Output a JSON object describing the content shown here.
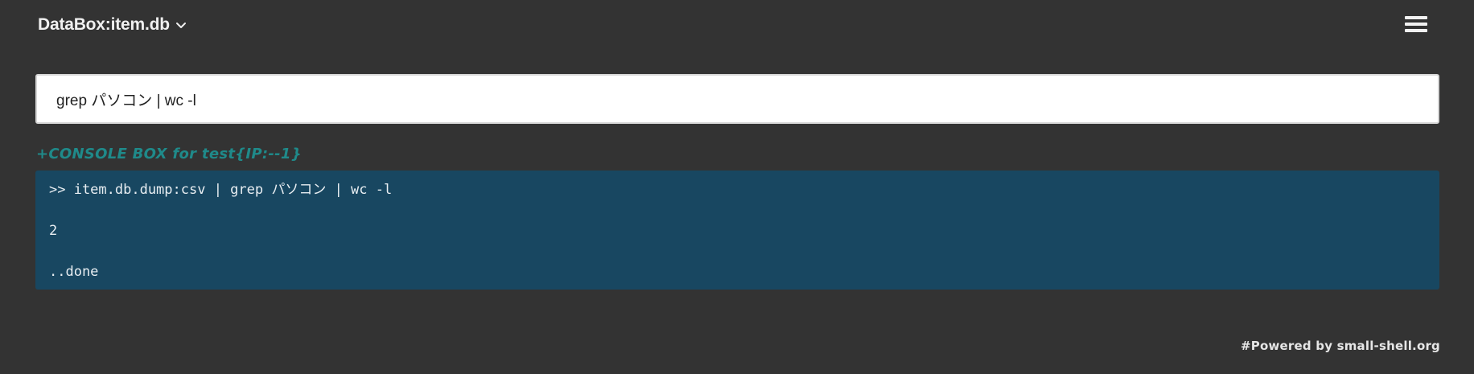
{
  "header": {
    "title": "DataBox:item.db",
    "dropdown_icon": "chevron-down-icon",
    "menu_icon": "hamburger-menu-icon"
  },
  "command": {
    "value": "grep パソコン | wc -l"
  },
  "console": {
    "label": "+CONSOLE BOX for test{IP:--1}",
    "lines": [
      ">> item.db.dump:csv | grep パソコン | wc -l",
      "2",
      "..done"
    ]
  },
  "footer": {
    "powered_by": "#Powered by small-shell.org"
  },
  "colors": {
    "background": "#333333",
    "console_background": "#184761",
    "console_label": "#1f8a8a",
    "input_background": "#ffffff"
  }
}
